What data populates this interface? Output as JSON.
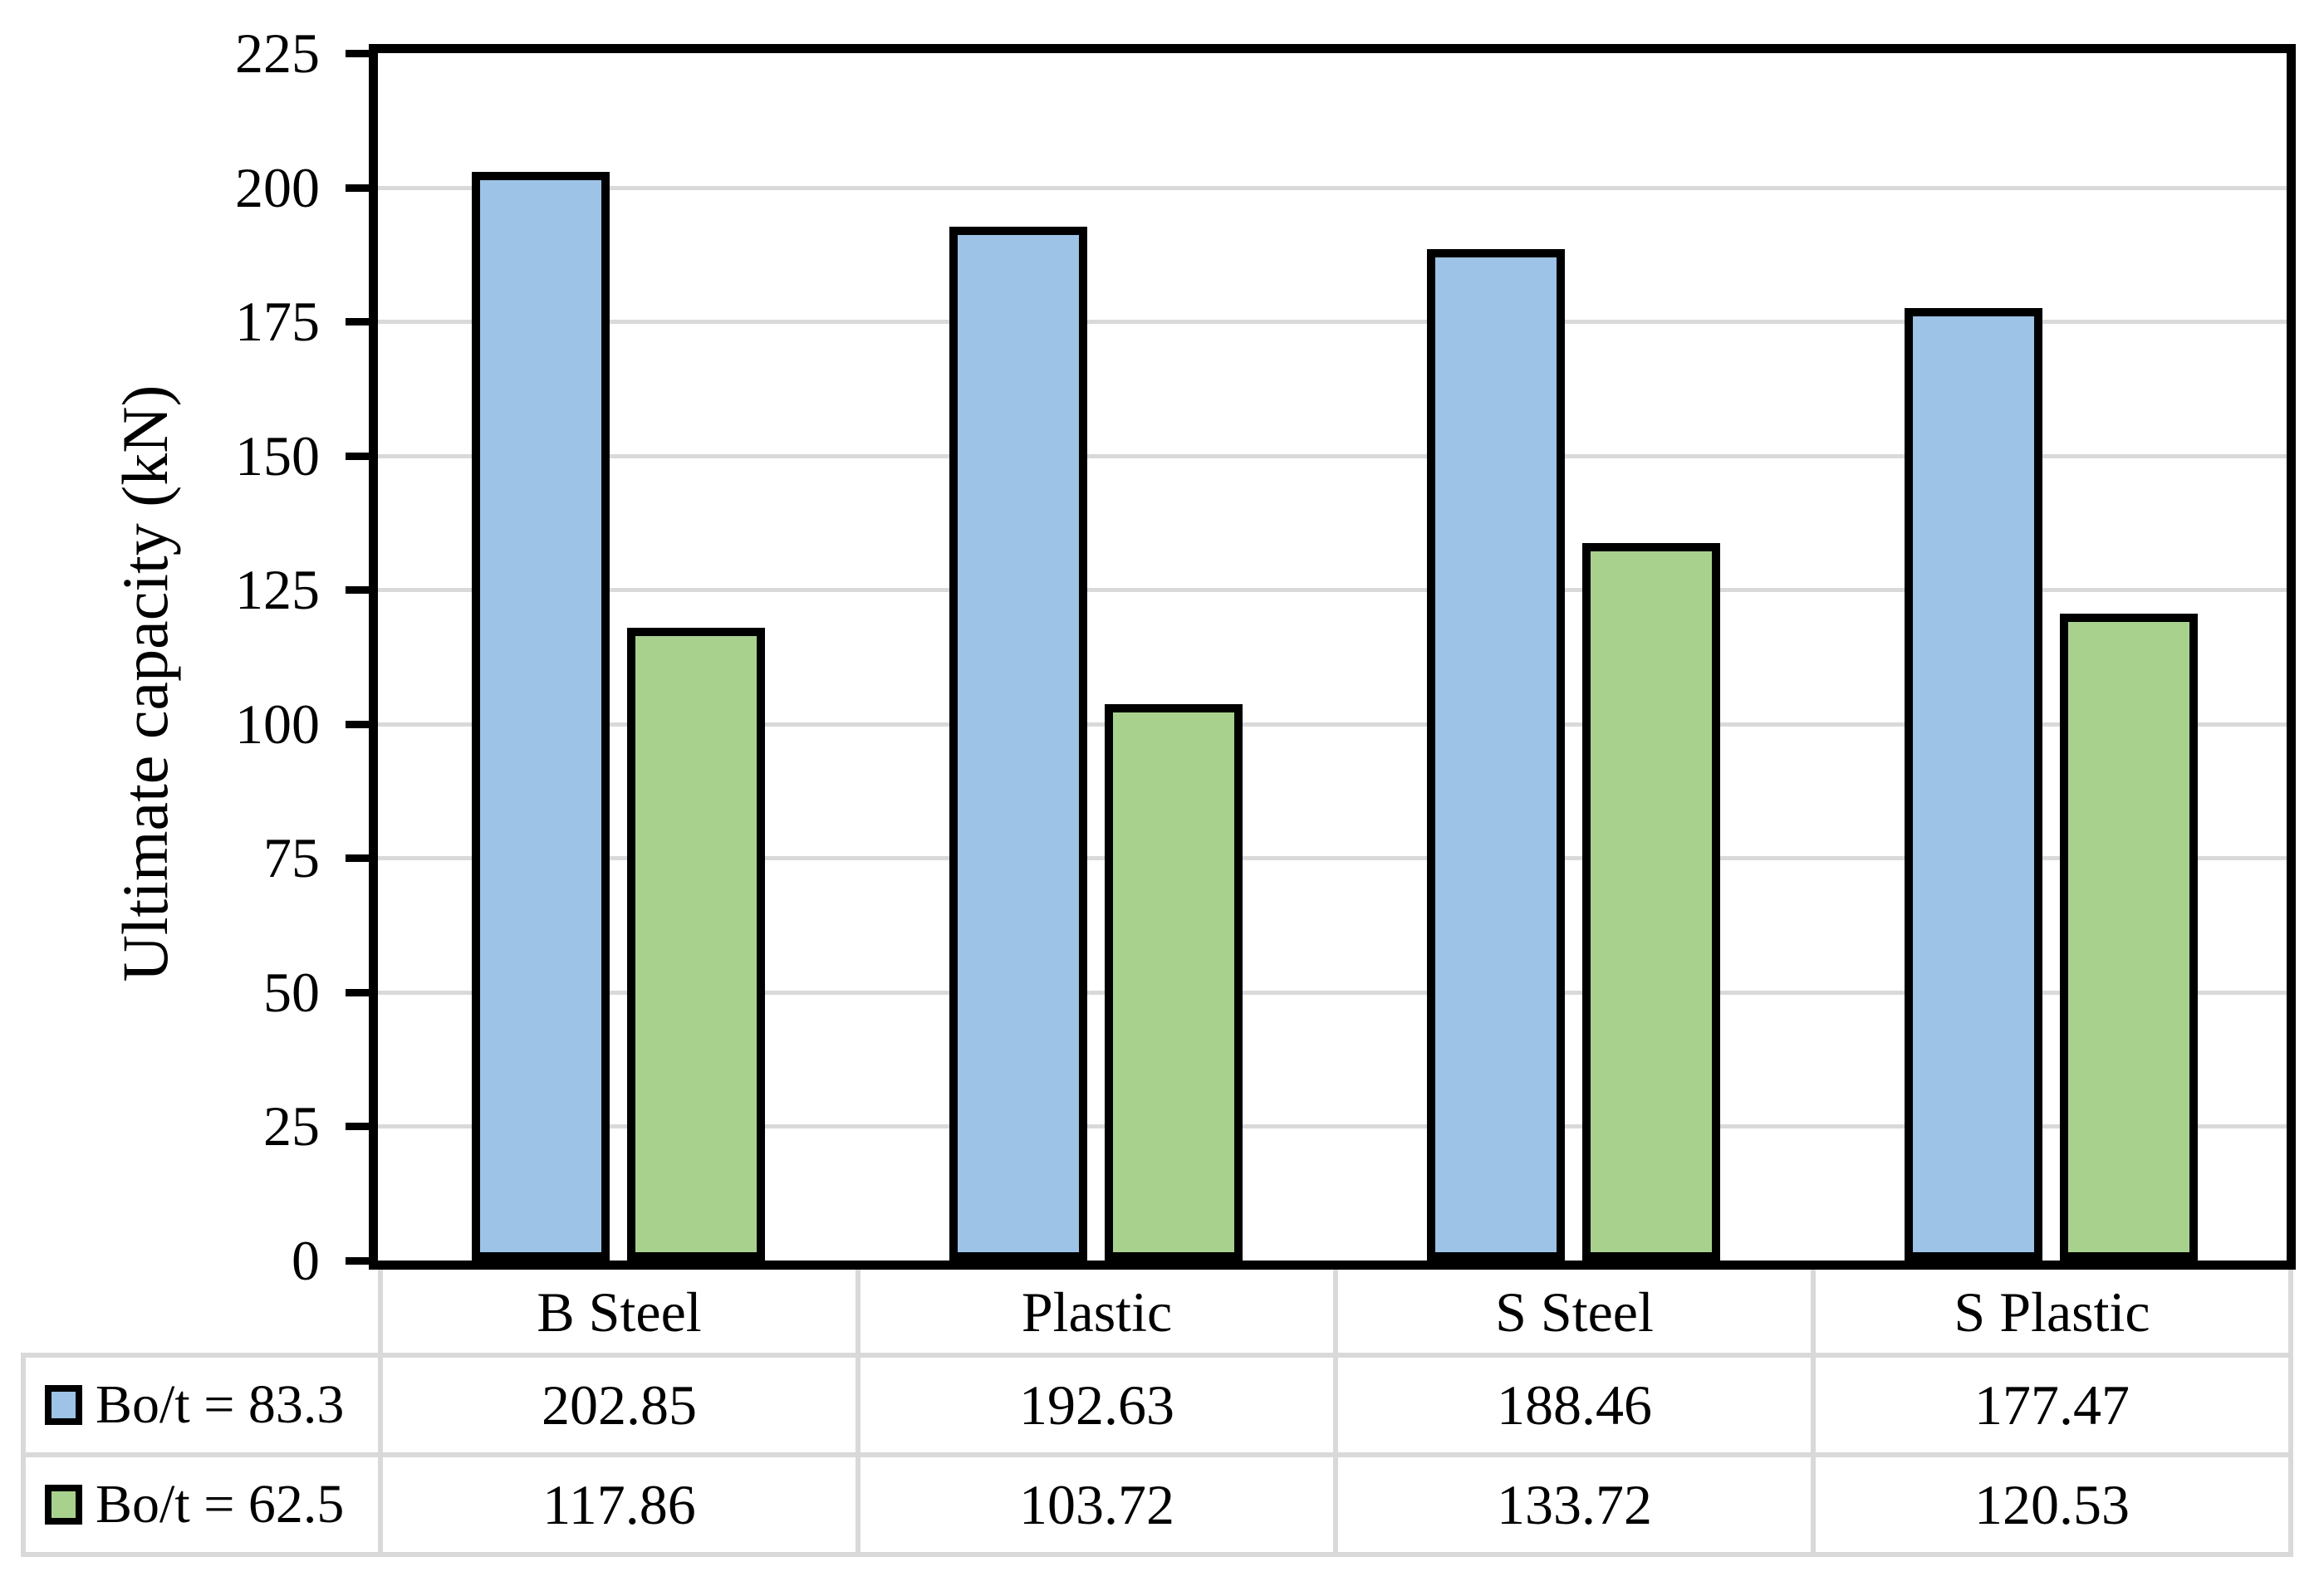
{
  "figure": {
    "background": "#FFFFFF",
    "text_color": "#000000"
  },
  "chart_data": {
    "type": "bar",
    "title": "",
    "xlabel": "",
    "ylabel": "Ultimate capacity (kN)",
    "categories": [
      "B Steel",
      "Plastic",
      "S Steel",
      "S Plastic"
    ],
    "series": [
      {
        "name": "Bo/t = 83.3",
        "color": "#9DC3E6",
        "values": [
          202.85,
          192.63,
          188.46,
          177.47
        ]
      },
      {
        "name": "Bo/t = 62.5",
        "color": "#A9D18E",
        "values": [
          117.86,
          103.72,
          133.72,
          120.53
        ]
      }
    ],
    "ylim": [
      0,
      225
    ],
    "yticks": [
      0,
      25,
      50,
      75,
      100,
      125,
      150,
      175,
      200,
      225
    ],
    "grid": true,
    "gridline_color": "#D9D9D9",
    "bar_outline_color": "#000000",
    "plot_border_color": "#000000",
    "table_border_color": "#D9D9D9",
    "legend_position": "table-left",
    "value_format_decimals": 2
  }
}
